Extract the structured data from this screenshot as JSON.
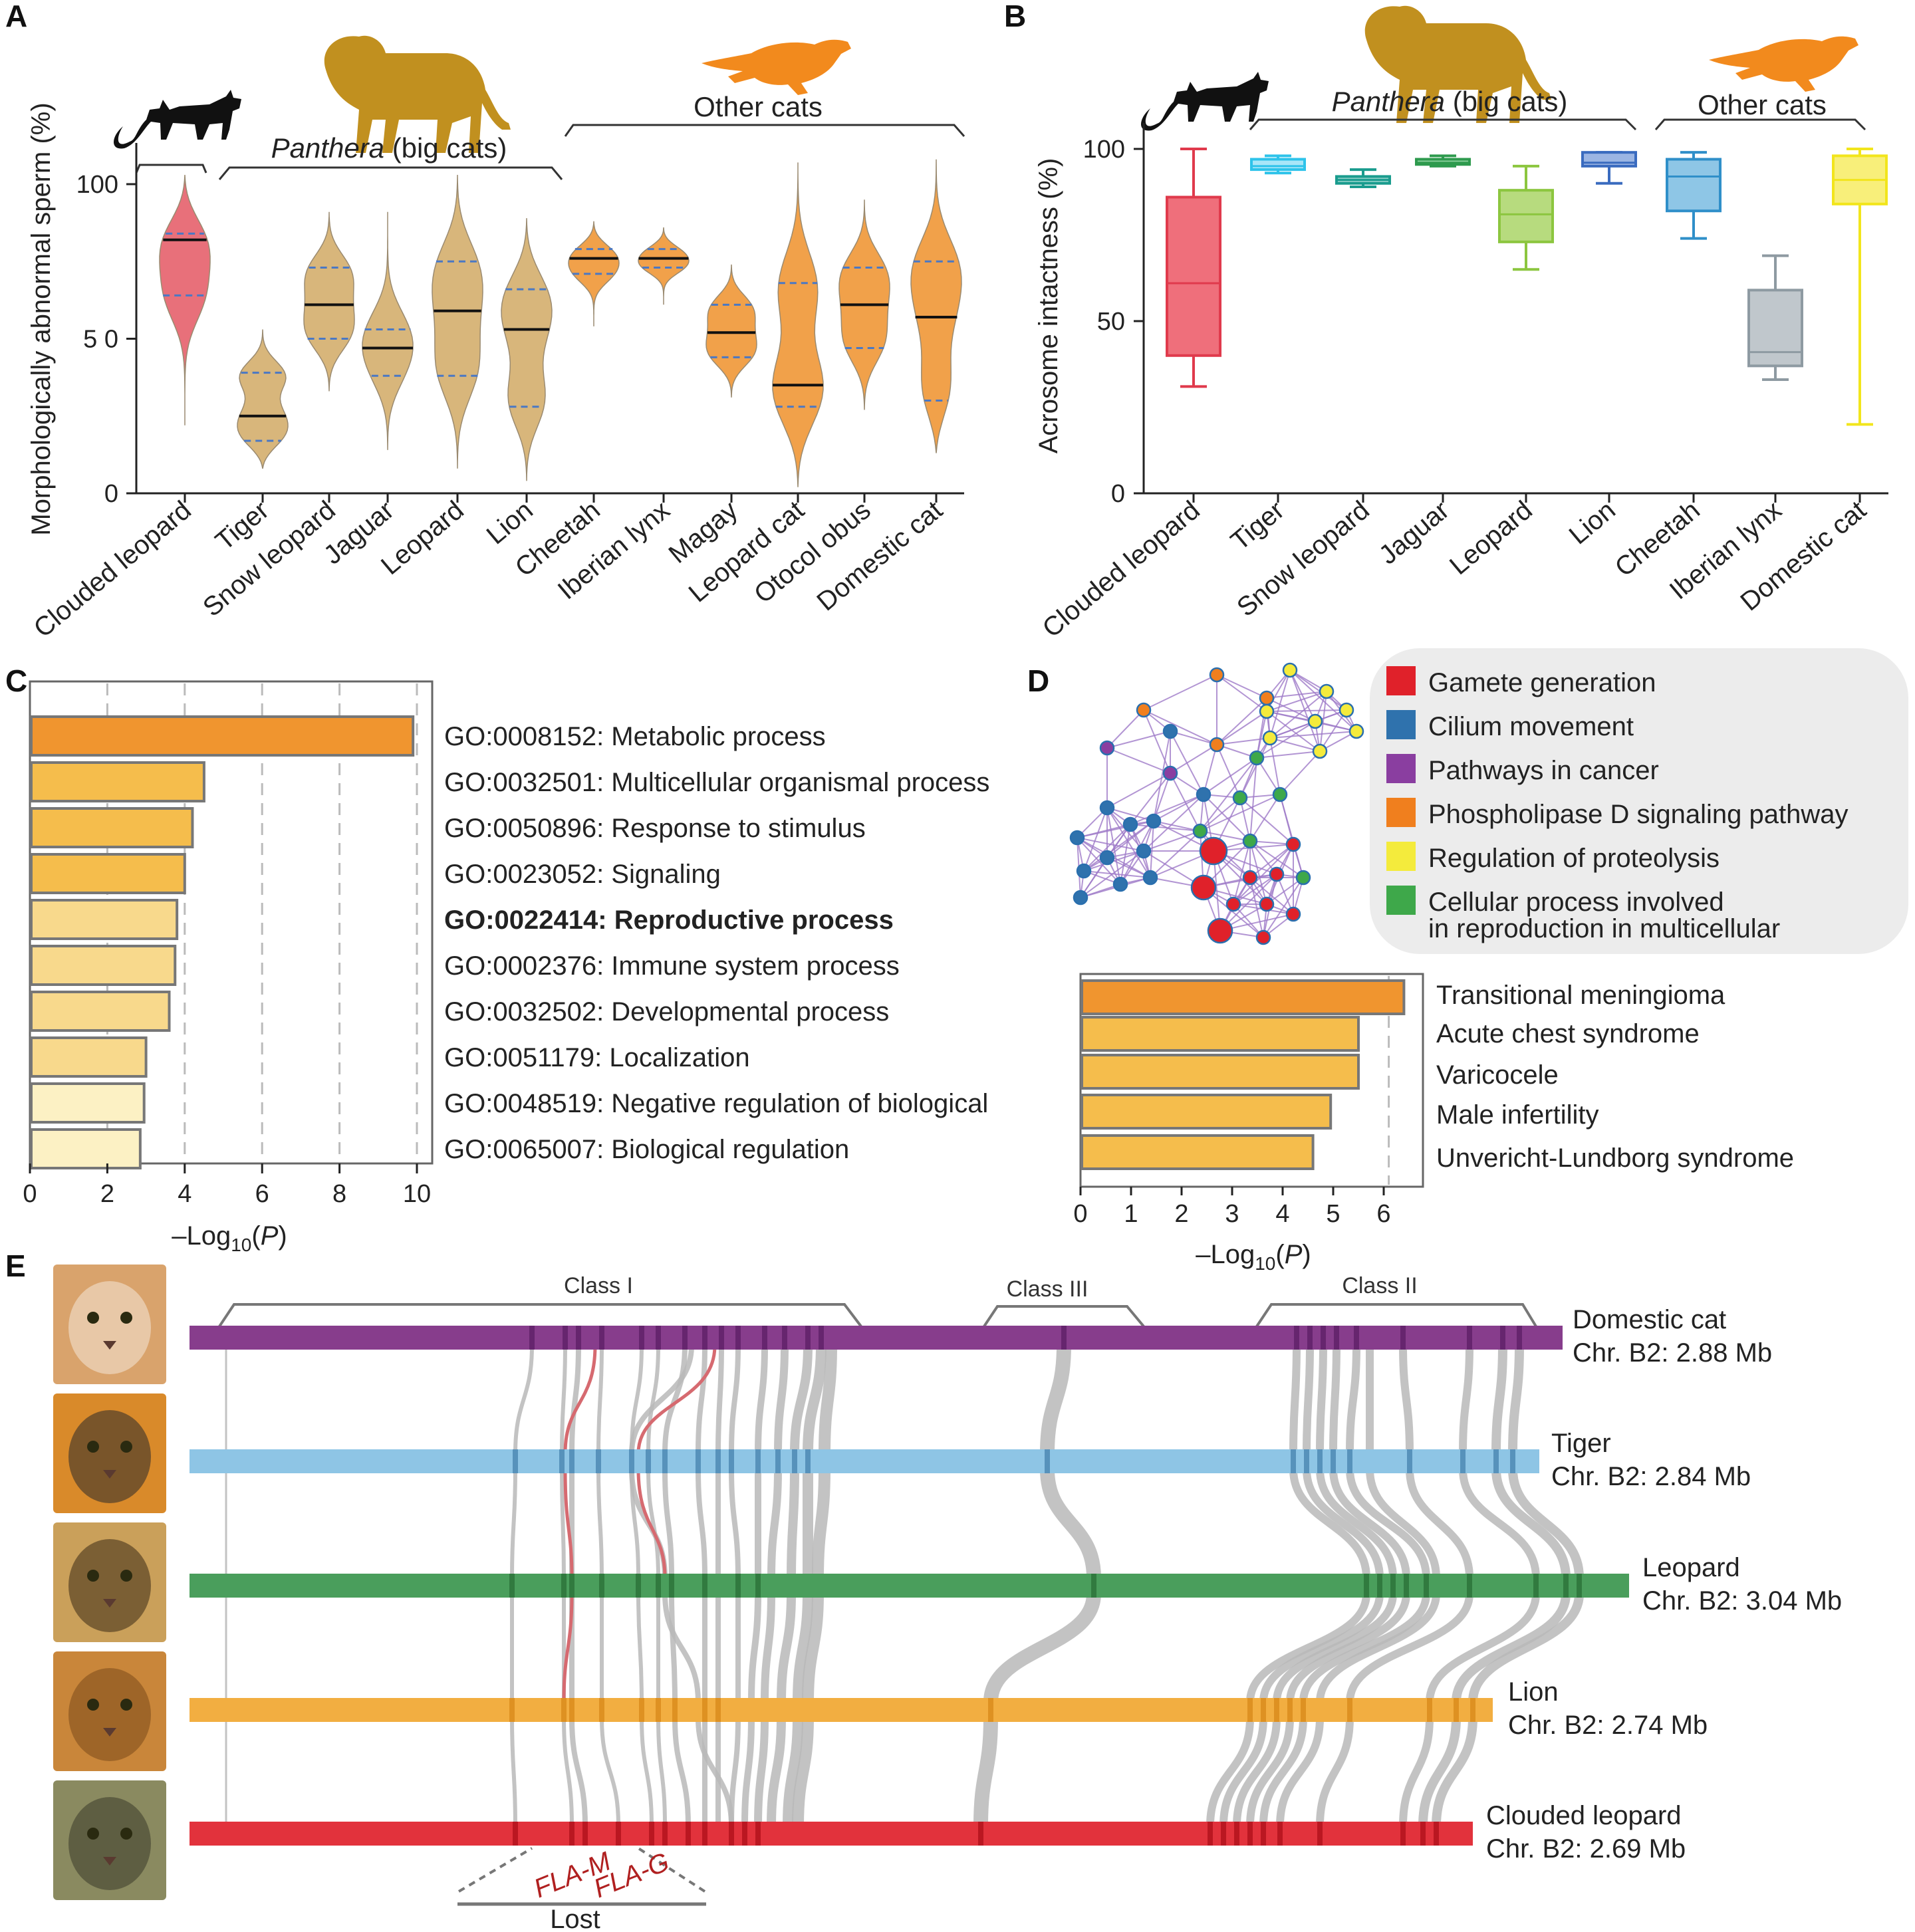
{
  "panels": {
    "A": "A",
    "B": "B",
    "C": "C",
    "D": "D",
    "E": "E"
  },
  "colors": {
    "clouded": "#e8707a",
    "panthera": "#d8b67b",
    "other": "#f1a14a",
    "median": "#111111",
    "quartile": "#4a78c4",
    "lion_silhouette": "#c1901f",
    "cheetah_silhouette": "#f28a1d",
    "cat_silhouette": "#111111"
  },
  "icons": [
    "black-cat-silhouette-icon",
    "lion-silhouette-icon",
    "cheetah-silhouette-icon",
    "cat-face-photo-icon",
    "tiger-face-photo-icon",
    "leopard-face-photo-icon",
    "lion-face-photo-icon",
    "clouded-leopard-face-photo-icon"
  ],
  "chart_data": [
    {
      "panel": "A",
      "type": "violin",
      "ylabel": "Morphologically abnormal sperm (%)",
      "ylim": [
        0,
        105
      ],
      "yticks": [
        "0",
        "5 0",
        "100"
      ],
      "yticks_values": [
        0,
        50,
        100
      ],
      "groups": [
        {
          "label": "Panthera (big cats)",
          "italic": "Panthera",
          "rest": " (big cats)"
        },
        {
          "label": "Other cats"
        }
      ],
      "categories": [
        "Clouded leopard",
        "Tiger",
        "Snow leopard",
        "Jaguar",
        "Leopard",
        "Lion",
        "Cheetah",
        "Iberian lynx",
        "Magay",
        "Leopard cat",
        "Otocol obus",
        "Domestic cat"
      ],
      "group_of_category": [
        "clouded",
        "panthera",
        "panthera",
        "panthera",
        "panthera",
        "panthera",
        "other",
        "other",
        "other",
        "other",
        "other",
        "other"
      ],
      "medians": [
        82,
        25,
        61,
        47,
        59,
        53,
        76,
        76,
        52,
        35,
        61,
        57
      ],
      "quartiles": [
        [
          64,
          84
        ],
        [
          17,
          39
        ],
        [
          50,
          73
        ],
        [
          38,
          53
        ],
        [
          38,
          75
        ],
        [
          28,
          66
        ],
        [
          71,
          79
        ],
        [
          73,
          79
        ],
        [
          44,
          61
        ],
        [
          28,
          68
        ],
        [
          47,
          73
        ],
        [
          30,
          75
        ]
      ],
      "ranges": [
        [
          22,
          103
        ],
        [
          8,
          53
        ],
        [
          33,
          91
        ],
        [
          14,
          91
        ],
        [
          8,
          103
        ],
        [
          4,
          89
        ],
        [
          54,
          88
        ],
        [
          61,
          86
        ],
        [
          31,
          74
        ],
        [
          2,
          107
        ],
        [
          27,
          95
        ],
        [
          13,
          108
        ]
      ]
    },
    {
      "panel": "B",
      "type": "box",
      "ylabel": "Acrosome intactness (%)",
      "ylim": [
        0,
        105
      ],
      "yticks": [
        "0",
        "50",
        "100"
      ],
      "yticks_values": [
        0,
        50,
        100
      ],
      "groups": [
        {
          "label": "Panthera (big cats)",
          "italic": "Panthera",
          "rest": " (big cats)"
        },
        {
          "label": "Other cats"
        }
      ],
      "categories": [
        "Clouded leopard",
        "Tiger",
        "Snow leopard",
        "Jaguar",
        "Leopard",
        "Lion",
        "Cheetah",
        "Iberian lynx",
        "Domestic cat"
      ],
      "colors": [
        "#e03a4c",
        "#2ec3ea",
        "#1a9c8e",
        "#2e9a4e",
        "#8cc63f",
        "#3a6bbf",
        "#2f8fc9",
        "#8e9aa2",
        "#f2e51c"
      ],
      "fills": [
        "#ef6f7b",
        "#a8e6f8",
        "#8fd0c8",
        "#8fd2a0",
        "#b7db7e",
        "#9bb5e3",
        "#8ec6e6",
        "#c0c7cc",
        "#f8ef7a"
      ],
      "whisker_low": [
        31,
        93,
        89,
        95,
        65,
        90,
        74,
        33,
        20
      ],
      "q1": [
        40,
        94,
        90,
        95.5,
        73,
        95,
        82,
        37,
        84
      ],
      "median": [
        61,
        95,
        91,
        96,
        81,
        96,
        92,
        41,
        91
      ],
      "q3": [
        86,
        97,
        92,
        97,
        88,
        99,
        97,
        59,
        98
      ],
      "whisker_high": [
        100,
        98,
        94,
        98,
        95,
        99,
        99,
        69,
        100
      ]
    },
    {
      "panel": "C",
      "type": "bar",
      "orientation": "horizontal",
      "xlabel": "–Log10(P)",
      "xlabel_main": "–Log",
      "xlabel_sub": "10",
      "xlabel_var": "P",
      "xlim": [
        0,
        10.4
      ],
      "xticks": [
        "0",
        "2",
        "4",
        "6",
        "8",
        "10"
      ],
      "xticks_values": [
        0,
        2,
        4,
        6,
        8,
        10
      ],
      "dashed_grid": [
        2,
        4,
        6,
        8,
        10
      ],
      "categories": [
        "GO:0008152: Metabolic process",
        "GO:0032501: Multicellular organismal process",
        "GO:0050896: Response to stimulus",
        "GO:0023052: Signaling",
        "GO:0022414: Reproductive process",
        "GO:0002376: Immune system process",
        "GO:0032502: Developmental process",
        "GO:0051179: Localization",
        "GO:0048519: Negative regulation of biological",
        "GO:0065007: Biological regulation"
      ],
      "values": [
        9.9,
        4.5,
        4.2,
        4.0,
        3.8,
        3.75,
        3.6,
        3.0,
        2.95,
        2.85
      ],
      "bar_colors": [
        "#f0952f",
        "#f5bd4c",
        "#f5bd4c",
        "#f5bd4c",
        "#f8d98c",
        "#f8d98c",
        "#f8d98c",
        "#f8d98c",
        "#fcf1c4",
        "#fcf1c4"
      ],
      "highlight_index": 4,
      "highlight_color": "#d42b2b"
    },
    {
      "panel": "D",
      "type": "bar",
      "orientation": "horizontal",
      "xlabel": "–Log10(P)",
      "xlabel_main": "–Log",
      "xlabel_sub": "10",
      "xlabel_var": "P",
      "xlim": [
        0,
        6.6
      ],
      "xticks": [
        "0",
        "1",
        "2",
        "3",
        "4",
        "5",
        "6"
      ],
      "xticks_values": [
        0,
        1,
        2,
        3,
        4,
        5,
        6
      ],
      "dashed_grid": [
        6.1
      ],
      "categories": [
        "Transitional meningioma",
        "Acute chest syndrome",
        "Varicocele",
        "Male infertility",
        "Unvericht-Lundborg syndrome"
      ],
      "values": [
        6.4,
        5.5,
        5.5,
        4.95,
        4.6
      ],
      "bar_colors": [
        "#f0952f",
        "#f5bd4c",
        "#f5bd4c",
        "#f5bd4c",
        "#f5bd4c"
      ],
      "label_colors": [
        "#222222",
        "#222222",
        "#d42b2b",
        "#d42b2b",
        "#222222"
      ]
    }
  ],
  "network_legend": [
    {
      "label": "Gamete generation",
      "color": "#e0212a"
    },
    {
      "label": "Cilium movement",
      "color": "#2f72ad"
    },
    {
      "label": "Pathways in cancer",
      "color": "#8a3ea0"
    },
    {
      "label": "Phospholipase D signaling pathway",
      "color": "#f07f1e"
    },
    {
      "label": "Regulation of proteolysis",
      "color": "#f4eb3c"
    },
    {
      "label": "Cellular process involved",
      "color": "#3ea84a"
    },
    {
      "label": "in reproduction in multicellular",
      "color": null
    }
  ],
  "synteny": {
    "classes": [
      "Class I",
      "Class III",
      "Class II"
    ],
    "chromosomes": [
      {
        "species": "Domestic cat",
        "chr": "Chr. B2: 2.88 Mb",
        "color": "#873d8c",
        "tick": "#5e1f66"
      },
      {
        "species": "Tiger",
        "chr": "Chr. B2: 2.84 Mb",
        "color": "#8ec5e5",
        "tick": "#4a84b0"
      },
      {
        "species": "Leopard",
        "chr": "Chr. B2: 3.04 Mb",
        "color": "#4a9e5c",
        "tick": "#2a7038"
      },
      {
        "species": "Lion",
        "chr": "Chr. B2: 2.74 Mb",
        "color": "#f2ae41",
        "tick": "#d88a1a"
      },
      {
        "species": "Clouded leopard",
        "chr": "Chr. B2: 2.69 Mb",
        "color": "#e2323c",
        "tick": "#b0101a"
      }
    ],
    "lost_genes": [
      "FLA-M",
      "FLA-G"
    ],
    "lost_label": "Lost"
  }
}
